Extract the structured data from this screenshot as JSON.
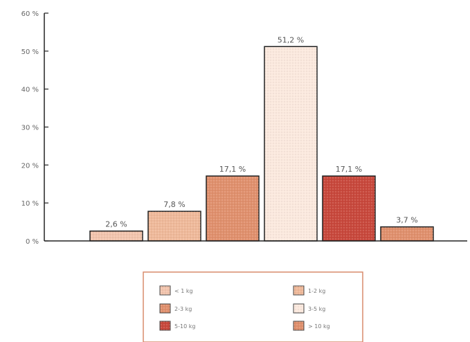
{
  "chart_data": {
    "type": "bar",
    "categories": [
      "< 1 kg",
      "1-2 kg",
      "2-3 kg",
      "3-5 kg",
      "5-10 kg",
      "> 10 kg"
    ],
    "values": [
      2.6,
      7.8,
      17.1,
      51.2,
      17.1,
      3.7
    ],
    "data_labels": [
      "2,6 %",
      "7,8 %",
      "17,1 %",
      "51,2 %",
      "17,1 %",
      "3,7 %"
    ],
    "series_colors": [
      "#f2c4ad",
      "#efb99a",
      "#e0906d",
      "#fbe9de",
      "#c8483c",
      "#e0906d"
    ],
    "ylim": [
      0,
      60
    ],
    "yticks": [
      0,
      10,
      20,
      30,
      40,
      50,
      60
    ],
    "ytick_labels": [
      "0 %",
      "10 %",
      "20 %",
      "30 %",
      "40 %",
      "50 %",
      "60 %"
    ],
    "title": "",
    "xlabel": "",
    "ylabel": "",
    "grid": false,
    "legend_position": "bottom",
    "legend": [
      "< 1 kg",
      "1-2 kg",
      "2-3 kg",
      "3-5 kg",
      "5-10 kg",
      "> 10 kg"
    ],
    "accent_color": "#e0906d",
    "legend_border_color": "#d98b6c"
  }
}
